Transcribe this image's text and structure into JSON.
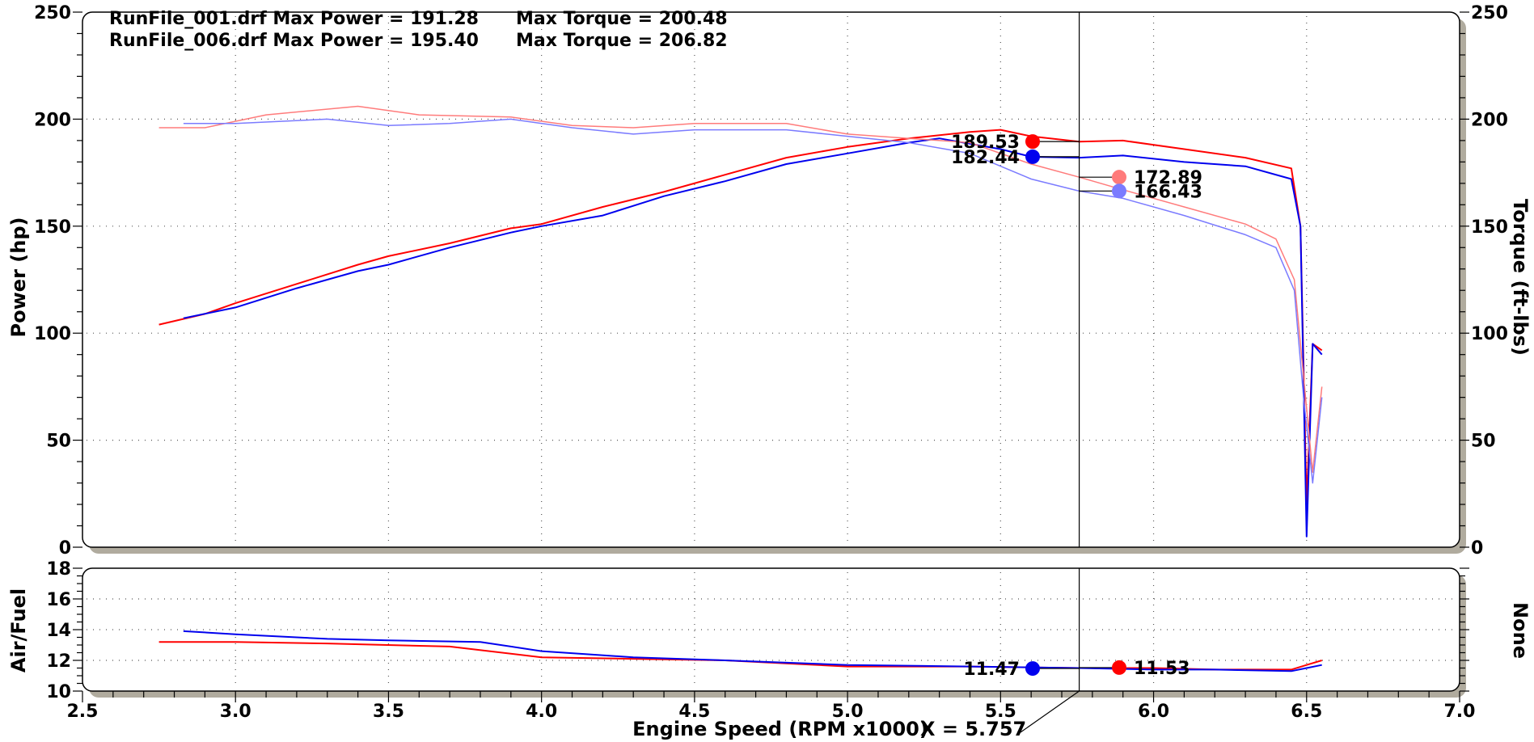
{
  "header": {
    "run1": {
      "label": "RunFile_001.drf Max Power = 191.28",
      "torque": "Max Torque = 200.48"
    },
    "run2": {
      "label": "RunFile_006.drf Max Power = 195.40",
      "torque": "Max Torque = 206.82"
    }
  },
  "cursor": {
    "x": 5.757,
    "readout": "X = 5.757",
    "power_markers": [
      {
        "value": 189.53,
        "label": "189.53",
        "color": "#ff0000"
      },
      {
        "value": 182.44,
        "label": "182.44",
        "color": "#0000ee"
      }
    ],
    "torque_markers": [
      {
        "value": 172.89,
        "label": "172.89",
        "color": "#ff7b7b"
      },
      {
        "value": 166.43,
        "label": "166.43",
        "color": "#7b7bff"
      }
    ],
    "afr_markers": [
      {
        "value": 11.47,
        "label": "11.47",
        "color": "#0000ee"
      },
      {
        "value": 11.53,
        "label": "11.53",
        "color": "#ff0000"
      }
    ]
  },
  "chart_data": [
    {
      "type": "line",
      "title": "",
      "xlabel": "Engine Speed (RPM x1000)",
      "ylabel": "Power (hp)",
      "y2label": "Torque (ft-lbs)",
      "xlim": [
        2.5,
        7.0
      ],
      "ylim": [
        0,
        250
      ],
      "y2lim": [
        0,
        250
      ],
      "x_ticks": [
        "2.5",
        "3.0",
        "3.5",
        "4.0",
        "4.5",
        "5.0",
        "5.5",
        "6.0",
        "6.5",
        "7.0"
      ],
      "y_ticks": [
        "0",
        "50",
        "100",
        "150",
        "200",
        "250"
      ],
      "y2_ticks": [
        "0",
        "50",
        "100",
        "150",
        "200",
        "250"
      ],
      "grid": true,
      "series": [
        {
          "name": "RunFile_006.drf",
          "quantity": "power",
          "color": "#ff0000",
          "x": [
            2.75,
            2.9,
            3.0,
            3.2,
            3.4,
            3.5,
            3.7,
            3.9,
            4.0,
            4.2,
            4.4,
            4.6,
            4.8,
            5.0,
            5.2,
            5.4,
            5.5,
            5.6,
            5.757,
            5.9,
            6.1,
            6.3,
            6.45,
            6.48,
            6.5,
            6.52,
            6.55
          ],
          "y": [
            104,
            109,
            114,
            123,
            132,
            136,
            142,
            149,
            151,
            159,
            166,
            174,
            182,
            187,
            191,
            194,
            195,
            192,
            189.5,
            190,
            186,
            182,
            177,
            150,
            20,
            95,
            92
          ]
        },
        {
          "name": "RunFile_001.drf",
          "quantity": "power",
          "color": "#0000ee",
          "x": [
            2.83,
            3.0,
            3.2,
            3.4,
            3.5,
            3.7,
            3.9,
            4.0,
            4.2,
            4.4,
            4.6,
            4.8,
            5.0,
            5.2,
            5.3,
            5.5,
            5.6,
            5.757,
            5.9,
            6.1,
            6.3,
            6.45,
            6.48,
            6.5,
            6.52,
            6.55
          ],
          "y": [
            107,
            112,
            121,
            129,
            132,
            140,
            147,
            150,
            155,
            164,
            171,
            179,
            184,
            189,
            191,
            186,
            182.4,
            182,
            183,
            180,
            178,
            172,
            150,
            5,
            95,
            90
          ]
        },
        {
          "name": "RunFile_006.drf",
          "quantity": "torque",
          "color": "#ff7b7b",
          "x": [
            2.75,
            2.9,
            3.1,
            3.4,
            3.6,
            3.9,
            4.1,
            4.3,
            4.5,
            4.8,
            5.0,
            5.2,
            5.4,
            5.6,
            5.757,
            5.9,
            6.1,
            6.3,
            6.4,
            6.46,
            6.49,
            6.52,
            6.55
          ],
          "y": [
            196,
            196,
            202,
            206,
            202,
            201,
            197,
            196,
            198,
            198,
            193,
            191,
            189,
            179,
            172.9,
            167,
            159,
            151,
            144,
            125,
            80,
            35,
            75
          ]
        },
        {
          "name": "RunFile_001.drf",
          "quantity": "torque",
          "color": "#7b7bff",
          "x": [
            2.83,
            3.0,
            3.3,
            3.5,
            3.7,
            3.9,
            4.1,
            4.3,
            4.5,
            4.8,
            5.0,
            5.2,
            5.4,
            5.6,
            5.757,
            5.9,
            6.1,
            6.3,
            6.4,
            6.46,
            6.49,
            6.52,
            6.55
          ],
          "y": [
            198,
            198,
            200,
            197,
            198,
            200,
            196,
            193,
            195,
            195,
            192,
            189,
            184,
            172,
            166.4,
            163,
            155,
            146,
            140,
            120,
            70,
            30,
            70
          ]
        }
      ]
    },
    {
      "type": "line",
      "title": "",
      "xlabel": "Engine Speed (RPM x1000)",
      "ylabel": "Air/Fuel",
      "y2label": "None",
      "xlim": [
        2.5,
        7.0
      ],
      "ylim": [
        10,
        18
      ],
      "y_ticks": [
        "10",
        "12",
        "14",
        "16",
        "18"
      ],
      "grid": true,
      "series": [
        {
          "name": "RunFile_006.drf",
          "quantity": "air_fuel",
          "color": "#ff0000",
          "x": [
            2.75,
            3.0,
            3.3,
            3.7,
            4.0,
            4.3,
            4.6,
            5.0,
            5.4,
            5.757,
            6.0,
            6.2,
            6.45,
            6.5,
            6.55
          ],
          "y": [
            13.2,
            13.2,
            13.1,
            12.9,
            12.2,
            12.1,
            12.0,
            11.6,
            11.6,
            11.5,
            11.5,
            11.4,
            11.4,
            11.7,
            12.0
          ]
        },
        {
          "name": "RunFile_001.drf",
          "quantity": "air_fuel",
          "color": "#0000ee",
          "x": [
            2.83,
            3.0,
            3.3,
            3.5,
            3.8,
            4.0,
            4.3,
            4.6,
            5.0,
            5.4,
            5.757,
            6.0,
            6.2,
            6.45,
            6.5,
            6.55
          ],
          "y": [
            13.9,
            13.7,
            13.4,
            13.3,
            13.2,
            12.6,
            12.2,
            12.0,
            11.7,
            11.6,
            11.5,
            11.4,
            11.4,
            11.3,
            11.5,
            11.7
          ]
        }
      ]
    }
  ]
}
